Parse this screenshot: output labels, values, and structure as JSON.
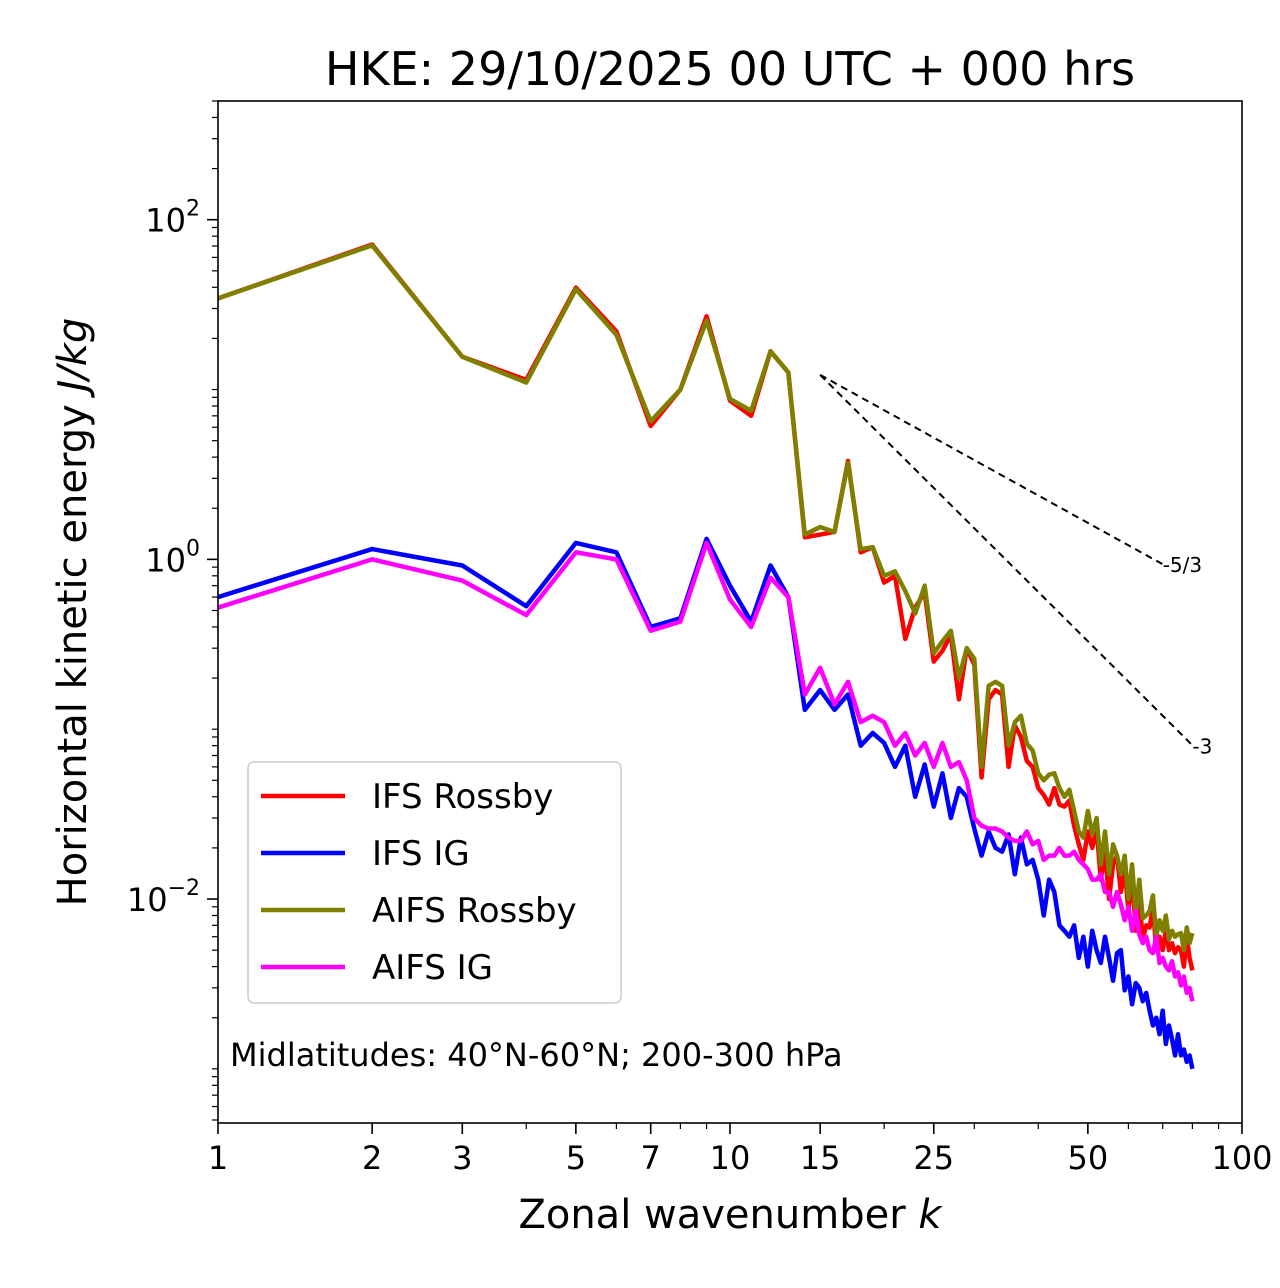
{
  "chart_data": {
    "type": "line",
    "title": "HKE: 29/10/2025 00 UTC + 000 hrs",
    "xlabel": "Zonal wavenumber",
    "xlabel_var": "k",
    "ylabel": "Horizontal kinetic energy",
    "ylabel_units": "J/kg",
    "xscale": "log",
    "yscale": "log",
    "xlim": [
      1,
      100
    ],
    "ylim": [
      0.00048,
      500
    ],
    "x_ticks": [
      1,
      2,
      3,
      5,
      7,
      10,
      15,
      25,
      50,
      100
    ],
    "y_ticks": [
      {
        "value": 0.01,
        "base": "10",
        "exp": "−2"
      },
      {
        "value": 1,
        "base": "10",
        "exp": "0"
      },
      {
        "value": 100,
        "base": "10",
        "exp": "2"
      }
    ],
    "annotation": "Midlatitudes: 40°N-60°N; 200-300 hPa",
    "legend_position": "lower-left",
    "reference_lines": [
      {
        "label": "-5/3",
        "slope": -1.6667,
        "k_start": 15,
        "k_end": 70,
        "E_start": 12.2
      },
      {
        "label": "-3",
        "slope": -3,
        "k_start": 15,
        "k_end": 80,
        "E_start": 12.2
      }
    ],
    "series": [
      {
        "name": "IFS Rossby",
        "color": "#ff0000",
        "values": [
          34.4,
          71.4,
          15.6,
          11.4,
          39.8,
          22.0,
          6.1,
          10.0,
          27.0,
          8.6,
          7.01,
          16.8,
          12.6,
          1.35,
          1.4,
          1.45,
          3.8,
          1.1,
          1.18,
          0.73,
          0.8,
          0.34,
          0.52,
          0.64,
          0.25,
          0.29,
          0.36,
          0.15,
          0.3,
          0.24,
          0.052,
          0.15,
          0.17,
          0.16,
          0.06,
          0.105,
          0.09,
          0.065,
          0.06,
          0.045,
          0.041,
          0.036,
          0.045,
          0.036,
          0.035,
          0.038,
          0.027,
          0.021,
          0.017,
          0.025,
          0.02,
          0.026,
          0.013,
          0.019,
          0.01,
          0.016,
          0.018,
          0.011,
          0.015,
          0.0085,
          0.014,
          0.0065,
          0.01,
          0.0058,
          0.007,
          0.0068,
          0.009,
          0.005,
          0.006,
          0.005,
          0.0065,
          0.005,
          0.0055,
          0.0048,
          0.0052,
          0.005,
          0.004,
          0.006,
          0.0045,
          0.0038
        ]
      },
      {
        "name": "IFS IG",
        "color": "#0000ff",
        "values": [
          0.6,
          1.15,
          0.92,
          0.53,
          1.25,
          1.1,
          0.4,
          0.45,
          1.32,
          0.7,
          0.43,
          0.92,
          0.6,
          0.13,
          0.17,
          0.13,
          0.16,
          0.08,
          0.095,
          0.083,
          0.06,
          0.08,
          0.04,
          0.062,
          0.035,
          0.055,
          0.03,
          0.045,
          0.04,
          0.026,
          0.018,
          0.025,
          0.02,
          0.019,
          0.024,
          0.014,
          0.023,
          0.016,
          0.017,
          0.013,
          0.008,
          0.013,
          0.011,
          0.007,
          0.0065,
          0.006,
          0.007,
          0.0045,
          0.006,
          0.004,
          0.0065,
          0.005,
          0.0042,
          0.006,
          0.0045,
          0.0033,
          0.0048,
          0.005,
          0.0029,
          0.0035,
          0.0024,
          0.0032,
          0.003,
          0.0025,
          0.0028,
          0.0022,
          0.0018,
          0.002,
          0.0016,
          0.0022,
          0.0014,
          0.0018,
          0.0015,
          0.0012,
          0.0016,
          0.0012,
          0.0013,
          0.0011,
          0.0012,
          0.001
        ]
      },
      {
        "name": "AIFS Rossby",
        "color": "#808000",
        "values": [
          34.4,
          70.6,
          15.6,
          11.0,
          39.0,
          21.0,
          6.5,
          10.0,
          25.5,
          8.8,
          7.5,
          16.8,
          12.6,
          1.4,
          1.55,
          1.45,
          3.7,
          1.15,
          1.18,
          0.8,
          0.85,
          0.65,
          0.48,
          0.7,
          0.28,
          0.33,
          0.38,
          0.2,
          0.3,
          0.26,
          0.06,
          0.18,
          0.19,
          0.18,
          0.08,
          0.11,
          0.12,
          0.082,
          0.075,
          0.055,
          0.05,
          0.054,
          0.055,
          0.045,
          0.04,
          0.044,
          0.033,
          0.025,
          0.023,
          0.033,
          0.024,
          0.03,
          0.016,
          0.025,
          0.014,
          0.021,
          0.018,
          0.014,
          0.018,
          0.01,
          0.016,
          0.0082,
          0.013,
          0.0077,
          0.008,
          0.0085,
          0.0105,
          0.006,
          0.0075,
          0.0065,
          0.008,
          0.0058,
          0.0065,
          0.006,
          0.0062,
          0.0063,
          0.005,
          0.0068,
          0.0055,
          0.0063
        ]
      },
      {
        "name": "AIFS IG",
        "color": "#ff00ff",
        "values": [
          0.52,
          1.0,
          0.75,
          0.47,
          1.1,
          1.0,
          0.38,
          0.43,
          1.25,
          0.58,
          0.4,
          0.78,
          0.6,
          0.16,
          0.23,
          0.14,
          0.19,
          0.11,
          0.12,
          0.11,
          0.08,
          0.095,
          0.07,
          0.083,
          0.06,
          0.083,
          0.06,
          0.064,
          0.05,
          0.03,
          0.027,
          0.026,
          0.026,
          0.025,
          0.023,
          0.022,
          0.022,
          0.025,
          0.021,
          0.022,
          0.017,
          0.018,
          0.018,
          0.02,
          0.018,
          0.018,
          0.019,
          0.017,
          0.016,
          0.015,
          0.013,
          0.013,
          0.014,
          0.011,
          0.011,
          0.009,
          0.011,
          0.0093,
          0.0075,
          0.009,
          0.0065,
          0.0085,
          0.0062,
          0.0055,
          0.006,
          0.005,
          0.0048,
          0.006,
          0.0042,
          0.0045,
          0.004,
          0.0038,
          0.0043,
          0.0035,
          0.0037,
          0.0031,
          0.0035,
          0.0028,
          0.003,
          0.0025
        ]
      }
    ]
  }
}
